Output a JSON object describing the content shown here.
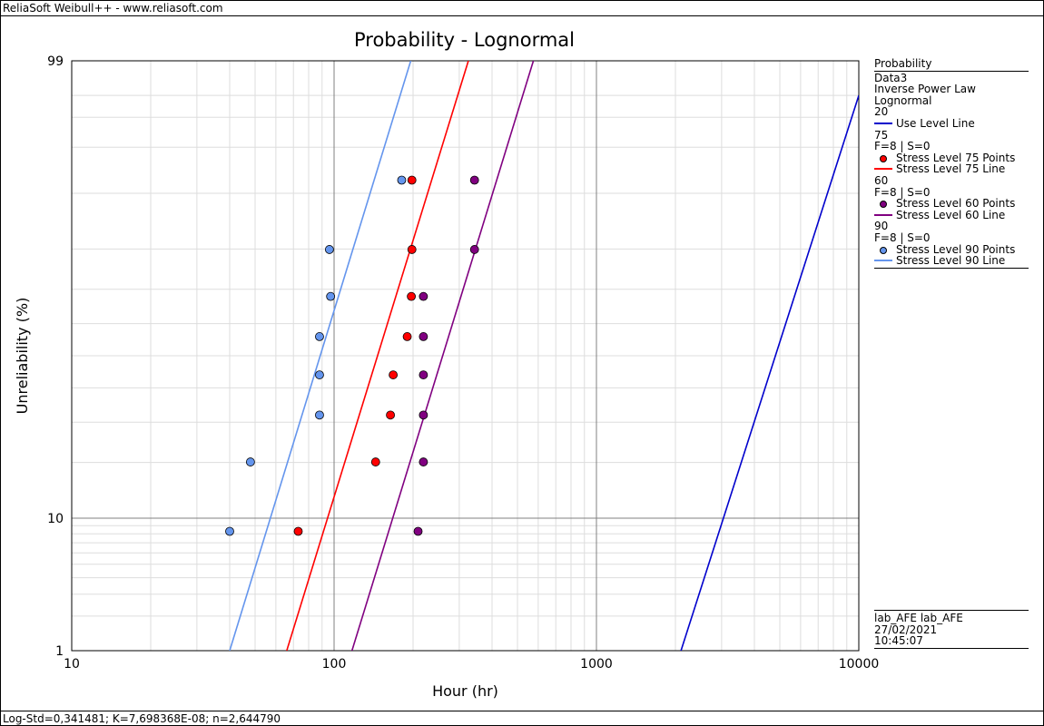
{
  "window": {
    "title": "ReliaSoft Weibull++ - www.reliasoft.com"
  },
  "status_bar": {
    "text": "Log-Std=0,341481; K=7,698368E-08; n=2,644790"
  },
  "chart_data": {
    "type": "scatter",
    "title": "Probability - Lognormal",
    "xlabel": "Hour (hr)",
    "ylabel": "Unreliability (%)",
    "xscale": "log",
    "yscale": "lognormal-probability",
    "xlim": [
      10,
      10000
    ],
    "ylim": [
      1,
      99
    ],
    "x_ticks": [
      "10",
      "100",
      "1000",
      "10000"
    ],
    "y_ticks": [
      "1",
      "10",
      "99"
    ],
    "grid": true,
    "legend_position": "right",
    "lines": [
      {
        "name": "Use Level Line",
        "color": "#0000cc",
        "x": [
          2100,
          10000
        ],
        "y": [
          1,
          98
        ]
      },
      {
        "name": "Stress Level 75 Line",
        "color": "#ff0000",
        "x": [
          66,
          325
        ],
        "y": [
          1,
          99
        ]
      },
      {
        "name": "Stress Level 60 Line",
        "color": "#800080",
        "x": [
          117,
          575
        ],
        "y": [
          1,
          99
        ]
      },
      {
        "name": "Stress Level 90 Line",
        "color": "#6495ed",
        "x": [
          40,
          196
        ],
        "y": [
          1,
          99
        ]
      }
    ],
    "series": [
      {
        "name": "Stress Level 75 Points",
        "color": "#ff0000",
        "x": [
          73,
          144,
          164,
          168,
          190,
          197,
          198,
          198
        ],
        "y": [
          8.3,
          20.1,
          32.0,
          44.0,
          56.0,
          68.0,
          79.9,
          91.7
        ]
      },
      {
        "name": "Stress Level 60 Points",
        "color": "#800080",
        "x": [
          209,
          219,
          219,
          219,
          219,
          219,
          343,
          343
        ],
        "y": [
          8.3,
          20.1,
          32.0,
          44.0,
          56.0,
          68.0,
          79.9,
          91.7
        ]
      },
      {
        "name": "Stress Level 90 Points",
        "color": "#6495ed",
        "x": [
          40,
          48,
          88,
          88,
          88,
          97,
          96,
          181
        ],
        "y": [
          8.3,
          20.1,
          32.0,
          44.0,
          56.0,
          68.0,
          79.9,
          91.7
        ]
      }
    ]
  },
  "legend": {
    "header": "Probability",
    "info_lines": [
      "Data3",
      "Inverse Power Law",
      "Lognormal"
    ],
    "groups": [
      {
        "level": "20",
        "stats": "",
        "items": [
          {
            "label": "Use Level Line",
            "kind": "line",
            "color": "#0000cc"
          }
        ]
      },
      {
        "level": "75",
        "stats": "F=8 | S=0",
        "items": [
          {
            "label": "Stress Level 75 Points",
            "kind": "dot",
            "color": "#ff0000"
          },
          {
            "label": "Stress Level 75 Line",
            "kind": "line",
            "color": "#ff0000"
          }
        ]
      },
      {
        "level": "60",
        "stats": "F=8 | S=0",
        "items": [
          {
            "label": "Stress Level 60 Points",
            "kind": "dot",
            "color": "#800080"
          },
          {
            "label": "Stress Level 60 Line",
            "kind": "line",
            "color": "#800080"
          }
        ]
      },
      {
        "level": "90",
        "stats": "F=8 | S=0",
        "items": [
          {
            "label": "Stress Level 90 Points",
            "kind": "dot",
            "color": "#6495ed"
          },
          {
            "label": "Stress Level 90 Line",
            "kind": "line",
            "color": "#6495ed"
          }
        ]
      }
    ]
  },
  "info_box": {
    "user": "lab_AFE lab_AFE",
    "date": "27/02/2021",
    "time": "10:45:07"
  }
}
